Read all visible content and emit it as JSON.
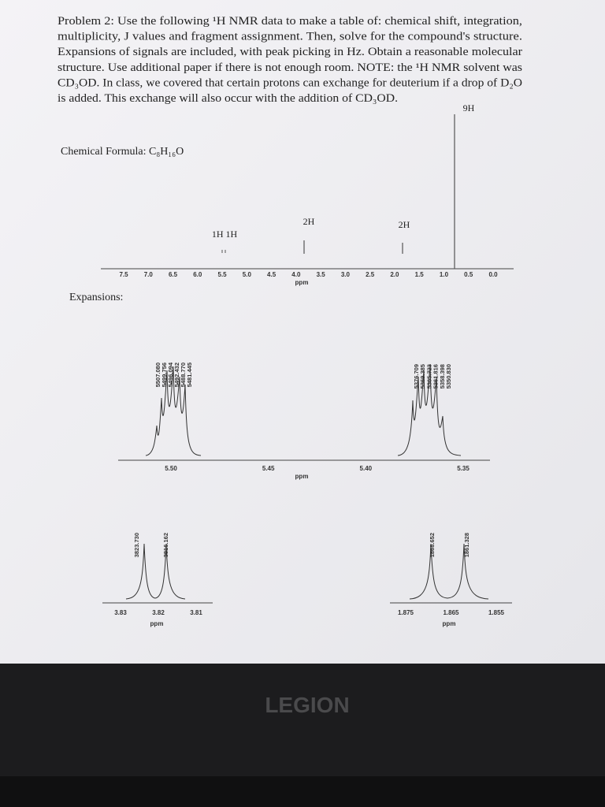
{
  "problem": {
    "lines": [
      "Problem  2:  Use the following ¹H NMR data to make a table of: chemical shift, integration,",
      "multiplicity, J values and fragment assignment. Then, solve for the compound's structure.",
      "Expansions of signals are included, with peak picking in Hz. Obtain a reasonable molecular",
      "structure. Use additional paper if there is not enough room. NOTE: the ¹H NMR solvent was",
      "CD₃OD. In class, we covered that certain protons can exchange for deuterium if a drop of D₂O",
      "is added. This exchange will also occur with the addition of CD₃OD."
    ],
    "formula": "Chemical Formula: C₈H₁₆O"
  },
  "spectrum": {
    "ticks": [
      "7.5",
      "7.0",
      "6.5",
      "6.0",
      "5.5",
      "5.0",
      "4.5",
      "4.0",
      "3.5",
      "3.0",
      "2.5",
      "2.0",
      "1.5",
      "1.0",
      "0.5",
      "0.0"
    ],
    "axis_label": "ppm",
    "integrations": [
      "1H  1H",
      "2H",
      "2H",
      "9H"
    ]
  },
  "expansions": {
    "label": "Expansions:",
    "upper": {
      "left_peaks": [
        "5507.080",
        "5499.756",
        "5496.094",
        "5492.432",
        "5488.770",
        "5481.445"
      ],
      "right_peaks": [
        "5376.709",
        "5369.385",
        "5365.723",
        "5361.816",
        "5358.398",
        "5350.830"
      ],
      "ticks": [
        "5.50",
        "5.45",
        "5.40",
        "5.35"
      ],
      "axis_label": "ppm"
    },
    "lower_left": {
      "peaks": [
        "3823.730",
        "3816.162"
      ],
      "ticks": [
        "3.83",
        "3.82",
        "3.81"
      ],
      "axis_label": "ppm"
    },
    "lower_right": {
      "peaks": [
        "1868.652",
        "1861.328"
      ],
      "ticks": [
        "1.875",
        "1.865",
        "1.855"
      ],
      "axis_label": "ppm"
    }
  },
  "bezel": {
    "brand": "LEGION"
  }
}
